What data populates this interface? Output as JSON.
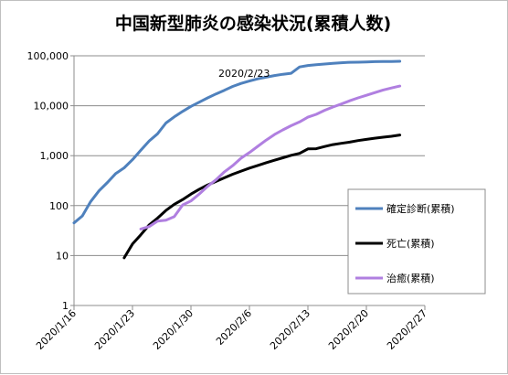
{
  "chart_data": {
    "type": "line",
    "title": "中国新型肺炎の感染状況(累積人数)",
    "annotation": "2020/2/23",
    "y_scale": "log",
    "ylim": [
      1,
      100000
    ],
    "y_ticks": [
      1,
      10,
      100,
      1000,
      10000,
      100000
    ],
    "y_tick_labels": [
      "1",
      "10",
      "100",
      "1,000",
      "10,000",
      "100,000"
    ],
    "xlim": [
      "2020-01-16",
      "2020-02-27"
    ],
    "x_ticks": [
      "2020-01-16",
      "2020-01-23",
      "2020-01-30",
      "2020-02-06",
      "2020-02-13",
      "2020-02-20",
      "2020-02-27"
    ],
    "x_tick_labels": [
      "2020/1/16",
      "2020/1/23",
      "2020/1/30",
      "2020/2/6",
      "2020/2/13",
      "2020/2/20",
      "2020/2/27"
    ],
    "grid": "horizontal",
    "legend_position": "right",
    "series": [
      {
        "name": "確定診断(累積)",
        "color": "#4f81bd",
        "points": [
          [
            "2020-01-16",
            45
          ],
          [
            "2020-01-17",
            62
          ],
          [
            "2020-01-18",
            121
          ],
          [
            "2020-01-19",
            198
          ],
          [
            "2020-01-20",
            291
          ],
          [
            "2020-01-21",
            440
          ],
          [
            "2020-01-22",
            571
          ],
          [
            "2020-01-23",
            830
          ],
          [
            "2020-01-24",
            1287
          ],
          [
            "2020-01-25",
            1975
          ],
          [
            "2020-01-26",
            2744
          ],
          [
            "2020-01-27",
            4515
          ],
          [
            "2020-01-28",
            5974
          ],
          [
            "2020-01-29",
            7711
          ],
          [
            "2020-01-30",
            9692
          ],
          [
            "2020-01-31",
            11791
          ],
          [
            "2020-02-01",
            14380
          ],
          [
            "2020-02-02",
            17205
          ],
          [
            "2020-02-03",
            20438
          ],
          [
            "2020-02-04",
            24324
          ],
          [
            "2020-02-05",
            28018
          ],
          [
            "2020-02-06",
            31161
          ],
          [
            "2020-02-07",
            34546
          ],
          [
            "2020-02-08",
            37198
          ],
          [
            "2020-02-09",
            40171
          ],
          [
            "2020-02-10",
            42638
          ],
          [
            "2020-02-11",
            44653
          ],
          [
            "2020-02-12",
            59804
          ],
          [
            "2020-02-13",
            63851
          ],
          [
            "2020-02-14",
            66492
          ],
          [
            "2020-02-15",
            68500
          ],
          [
            "2020-02-16",
            70548
          ],
          [
            "2020-02-17",
            72436
          ],
          [
            "2020-02-18",
            74185
          ],
          [
            "2020-02-19",
            74576
          ],
          [
            "2020-02-20",
            75465
          ],
          [
            "2020-02-21",
            76288
          ],
          [
            "2020-02-22",
            76936
          ],
          [
            "2020-02-23",
            77150
          ],
          [
            "2020-02-24",
            77658
          ]
        ]
      },
      {
        "name": "死亡(累積)",
        "color": "#000000",
        "points": [
          [
            "2020-01-22",
            9
          ],
          [
            "2020-01-23",
            17
          ],
          [
            "2020-01-24",
            26
          ],
          [
            "2020-01-25",
            41
          ],
          [
            "2020-01-26",
            56
          ],
          [
            "2020-01-27",
            80
          ],
          [
            "2020-01-28",
            106
          ],
          [
            "2020-01-29",
            132
          ],
          [
            "2020-01-30",
            170
          ],
          [
            "2020-01-31",
            213
          ],
          [
            "2020-02-01",
            259
          ],
          [
            "2020-02-02",
            304
          ],
          [
            "2020-02-03",
            361
          ],
          [
            "2020-02-04",
            425
          ],
          [
            "2020-02-05",
            490
          ],
          [
            "2020-02-06",
            563
          ],
          [
            "2020-02-07",
            636
          ],
          [
            "2020-02-08",
            722
          ],
          [
            "2020-02-09",
            811
          ],
          [
            "2020-02-10",
            908
          ],
          [
            "2020-02-11",
            1016
          ],
          [
            "2020-02-12",
            1113
          ],
          [
            "2020-02-13",
            1367
          ],
          [
            "2020-02-14",
            1380
          ],
          [
            "2020-02-15",
            1523
          ],
          [
            "2020-02-16",
            1665
          ],
          [
            "2020-02-17",
            1770
          ],
          [
            "2020-02-18",
            1868
          ],
          [
            "2020-02-19",
            2004
          ],
          [
            "2020-02-20",
            2118
          ],
          [
            "2020-02-21",
            2236
          ],
          [
            "2020-02-22",
            2345
          ],
          [
            "2020-02-23",
            2442
          ],
          [
            "2020-02-24",
            2592
          ]
        ]
      },
      {
        "name": "治癒(累積)",
        "color": "#b07fe0",
        "points": [
          [
            "2020-01-24",
            34
          ],
          [
            "2020-01-25",
            38
          ],
          [
            "2020-01-26",
            49
          ],
          [
            "2020-01-27",
            51
          ],
          [
            "2020-01-28",
            60
          ],
          [
            "2020-01-29",
            103
          ],
          [
            "2020-01-30",
            124
          ],
          [
            "2020-01-31",
            171
          ],
          [
            "2020-02-01",
            243
          ],
          [
            "2020-02-02",
            328
          ],
          [
            "2020-02-03",
            475
          ],
          [
            "2020-02-04",
            632
          ],
          [
            "2020-02-05",
            892
          ],
          [
            "2020-02-06",
            1153
          ],
          [
            "2020-02-07",
            1540
          ],
          [
            "2020-02-08",
            2050
          ],
          [
            "2020-02-09",
            2649
          ],
          [
            "2020-02-10",
            3281
          ],
          [
            "2020-02-11",
            3996
          ],
          [
            "2020-02-12",
            4740
          ],
          [
            "2020-02-13",
            5911
          ],
          [
            "2020-02-14",
            6723
          ],
          [
            "2020-02-15",
            8096
          ],
          [
            "2020-02-16",
            9419
          ],
          [
            "2020-02-17",
            10844
          ],
          [
            "2020-02-18",
            12552
          ],
          [
            "2020-02-19",
            14376
          ],
          [
            "2020-02-20",
            16155
          ],
          [
            "2020-02-21",
            18264
          ],
          [
            "2020-02-22",
            20659
          ],
          [
            "2020-02-23",
            22687
          ],
          [
            "2020-02-24",
            24734
          ]
        ]
      }
    ]
  }
}
